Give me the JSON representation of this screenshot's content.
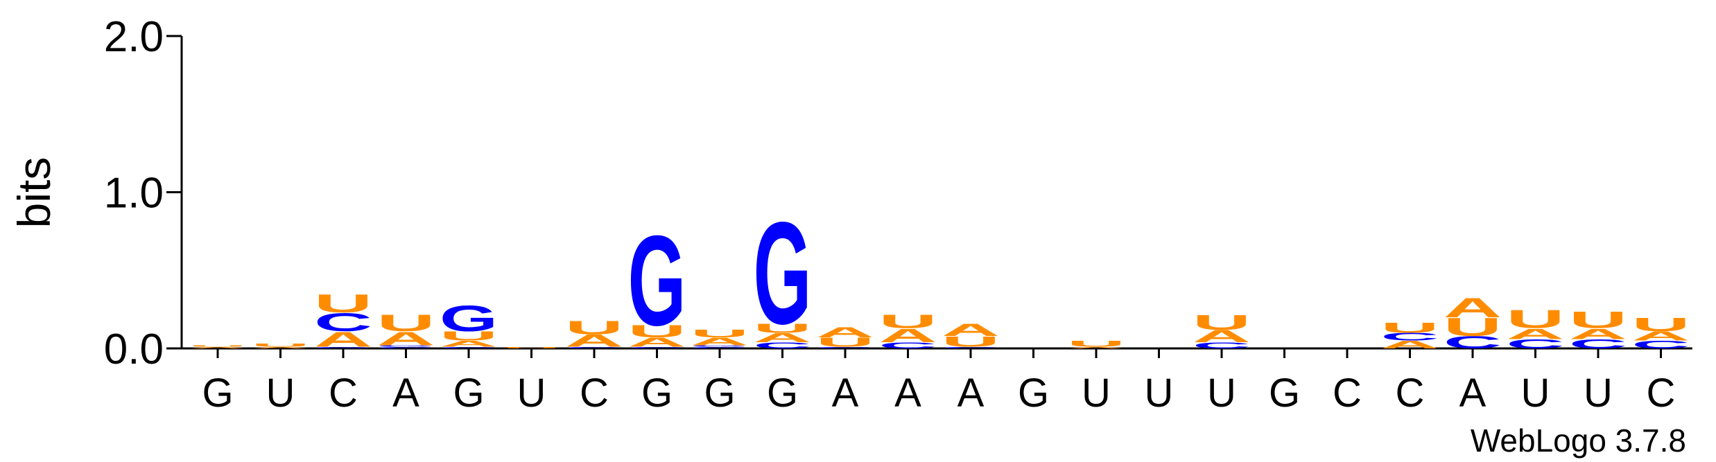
{
  "chart_data": {
    "type": "logo",
    "ylabel": "bits",
    "footer": "WebLogo 3.7.8",
    "categories": [
      "G",
      "U",
      "C",
      "A",
      "G",
      "U",
      "C",
      "G",
      "G",
      "G",
      "A",
      "A",
      "A",
      "G",
      "U",
      "U",
      "U",
      "G",
      "C",
      "C",
      "A",
      "U",
      "U",
      "C"
    ],
    "ylim": [
      0,
      2
    ],
    "yticks": [
      {
        "value": 0,
        "label": "0.0"
      },
      {
        "value": 1,
        "label": "1.0"
      },
      {
        "value": 2,
        "label": "2.0"
      }
    ],
    "series": [
      {
        "name": "A",
        "color": "#ff8c00",
        "values": [
          0.01,
          0.01,
          0.1,
          0.09,
          0.04,
          0,
          0.08,
          0.06,
          0.05,
          0.06,
          0.07,
          0.09,
          0.08,
          0,
          0.01,
          0,
          0.08,
          0,
          0,
          0.05,
          0.13,
          0.07,
          0.07,
          0.06
        ]
      },
      {
        "name": "C",
        "color": "#0000ff",
        "values": [
          0,
          0,
          0.12,
          0.01,
          0.01,
          0,
          0.01,
          0.01,
          0.01,
          0.04,
          0.01,
          0.04,
          0.01,
          0,
          0,
          0,
          0.04,
          0,
          0,
          0.05,
          0.08,
          0.06,
          0.06,
          0.05
        ]
      },
      {
        "name": "G",
        "color": "#0000ff",
        "values": [
          0,
          0,
          0.01,
          0.01,
          0.17,
          0,
          0,
          0.6,
          0.01,
          0.68,
          0,
          0,
          0,
          0,
          0,
          0,
          0,
          0,
          0,
          0,
          0,
          0,
          0,
          0
        ]
      },
      {
        "name": "U",
        "color": "#ff8c00",
        "values": [
          0.01,
          0.02,
          0.12,
          0.11,
          0.06,
          0.01,
          0.09,
          0.08,
          0.05,
          0.06,
          0.06,
          0.09,
          0.07,
          0,
          0.04,
          0,
          0.1,
          0,
          0,
          0.07,
          0.12,
          0.12,
          0.11,
          0.09
        ]
      }
    ]
  }
}
